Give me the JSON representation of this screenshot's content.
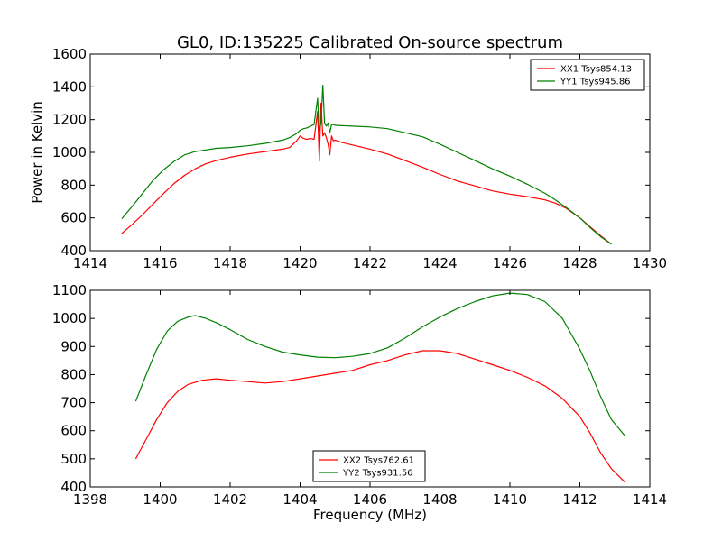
{
  "figure": {
    "title": "GL0, ID:135225 Calibrated On-source spectrum"
  },
  "chart_data": [
    {
      "type": "line",
      "title": "GL0, ID:135225 Calibrated On-source spectrum",
      "xlabel": "",
      "ylabel": "Power in Kelvin",
      "xlim": [
        1414,
        1430
      ],
      "ylim": [
        400,
        1600
      ],
      "xticks": [
        1414,
        1416,
        1418,
        1420,
        1422,
        1424,
        1426,
        1428,
        1430
      ],
      "yticks": [
        400,
        600,
        800,
        1000,
        1200,
        1400,
        1600
      ],
      "legend_position": "top-right",
      "grid": false,
      "series": [
        {
          "name": "XX1 Tsys854.13",
          "color": "#ff0000",
          "x": [
            1414.9,
            1415.2,
            1415.5,
            1415.8,
            1416.1,
            1416.4,
            1416.7,
            1417.0,
            1417.3,
            1417.6,
            1418.0,
            1418.5,
            1419.0,
            1419.5,
            1419.7,
            1419.9,
            1420.0,
            1420.1,
            1420.2,
            1420.3,
            1420.4,
            1420.5,
            1420.55,
            1420.6,
            1420.65,
            1420.7,
            1420.75,
            1420.8,
            1420.85,
            1420.9,
            1420.95,
            1421.0,
            1421.2,
            1421.5,
            1422.0,
            1422.5,
            1423.0,
            1423.5,
            1424.0,
            1424.5,
            1425.0,
            1425.5,
            1426.0,
            1426.5,
            1427.0,
            1427.3,
            1427.6,
            1428.0,
            1428.3,
            1428.6,
            1428.9
          ],
          "y": [
            505,
            560,
            620,
            685,
            750,
            810,
            860,
            900,
            930,
            950,
            970,
            990,
            1005,
            1020,
            1030,
            1070,
            1100,
            1085,
            1080,
            1085,
            1080,
            1250,
            945,
            1300,
            1100,
            1120,
            1090,
            1050,
            985,
            1100,
            1070,
            1075,
            1060,
            1045,
            1020,
            990,
            950,
            910,
            865,
            825,
            795,
            765,
            745,
            730,
            710,
            690,
            660,
            600,
            545,
            490,
            440
          ]
        },
        {
          "name": "YY1 Tsys945.86",
          "color": "#008000",
          "x": [
            1414.9,
            1415.2,
            1415.5,
            1415.8,
            1416.1,
            1416.4,
            1416.7,
            1417.0,
            1417.3,
            1417.6,
            1418.0,
            1418.5,
            1419.0,
            1419.5,
            1419.7,
            1419.9,
            1420.0,
            1420.1,
            1420.2,
            1420.3,
            1420.4,
            1420.5,
            1420.55,
            1420.6,
            1420.65,
            1420.7,
            1420.75,
            1420.8,
            1420.85,
            1420.9,
            1420.95,
            1421.0,
            1421.5,
            1422.0,
            1422.5,
            1423.0,
            1423.5,
            1424.0,
            1424.5,
            1425.0,
            1425.5,
            1426.0,
            1426.5,
            1427.0,
            1427.3,
            1427.6,
            1428.0,
            1428.3,
            1428.6,
            1428.9
          ],
          "y": [
            595,
            670,
            750,
            830,
            895,
            945,
            985,
            1005,
            1015,
            1025,
            1030,
            1040,
            1055,
            1075,
            1090,
            1115,
            1135,
            1145,
            1150,
            1160,
            1170,
            1330,
            1130,
            1180,
            1410,
            1180,
            1160,
            1180,
            1120,
            1170,
            1170,
            1165,
            1160,
            1155,
            1145,
            1120,
            1095,
            1050,
            1000,
            950,
            900,
            855,
            805,
            750,
            710,
            665,
            600,
            540,
            485,
            440
          ]
        }
      ]
    },
    {
      "type": "line",
      "title": "",
      "xlabel": "Frequency (MHz)",
      "ylabel": "",
      "xlim": [
        1398,
        1414
      ],
      "ylim": [
        400,
        1100
      ],
      "xticks": [
        1398,
        1400,
        1402,
        1404,
        1406,
        1408,
        1410,
        1412,
        1414
      ],
      "yticks": [
        400,
        500,
        600,
        700,
        800,
        900,
        1000,
        1100
      ],
      "legend_position": "bottom-center",
      "grid": false,
      "series": [
        {
          "name": "XX2 Tsys762.61",
          "color": "#ff0000",
          "x": [
            1399.3,
            1399.6,
            1399.9,
            1400.2,
            1400.5,
            1400.8,
            1401.2,
            1401.6,
            1402.0,
            1402.5,
            1403.0,
            1403.5,
            1404.0,
            1404.5,
            1405.0,
            1405.5,
            1406.0,
            1406.5,
            1407.0,
            1407.5,
            1408.0,
            1408.5,
            1409.0,
            1409.5,
            1410.0,
            1410.5,
            1411.0,
            1411.5,
            1412.0,
            1412.3,
            1412.6,
            1412.9,
            1413.3
          ],
          "y": [
            500,
            570,
            640,
            700,
            740,
            765,
            780,
            785,
            780,
            775,
            770,
            775,
            785,
            795,
            805,
            815,
            835,
            850,
            870,
            885,
            885,
            875,
            855,
            835,
            815,
            790,
            760,
            715,
            650,
            590,
            520,
            465,
            415
          ]
        },
        {
          "name": "YY2 Tsys931.56",
          "color": "#008000",
          "x": [
            1399.3,
            1399.6,
            1399.9,
            1400.2,
            1400.5,
            1400.8,
            1401.0,
            1401.3,
            1401.6,
            1402.0,
            1402.5,
            1403.0,
            1403.5,
            1404.0,
            1404.5,
            1405.0,
            1405.5,
            1406.0,
            1406.5,
            1407.0,
            1407.5,
            1408.0,
            1408.5,
            1409.0,
            1409.5,
            1410.0,
            1410.5,
            1411.0,
            1411.5,
            1412.0,
            1412.3,
            1412.6,
            1412.9,
            1413.3
          ],
          "y": [
            705,
            800,
            890,
            955,
            990,
            1005,
            1010,
            1000,
            985,
            960,
            925,
            900,
            880,
            870,
            862,
            860,
            865,
            875,
            895,
            930,
            970,
            1005,
            1035,
            1060,
            1080,
            1090,
            1085,
            1060,
            1000,
            890,
            810,
            720,
            640,
            580
          ]
        }
      ]
    }
  ]
}
